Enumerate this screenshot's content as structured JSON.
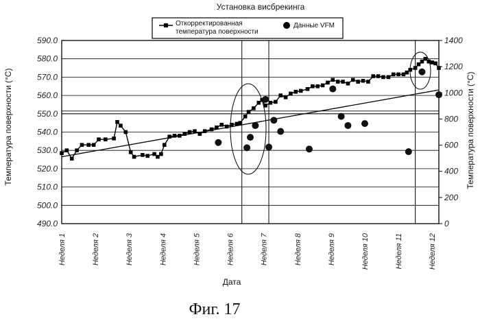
{
  "chart_data": {
    "type": "line",
    "title": "Установка висбрекинга",
    "xlabel": "Дата",
    "ylabel_left": "Температура поверхности (°C)",
    "ylabel_right": "Температура поверхности (°C)",
    "caption": "Фиг. 17",
    "x_categories": [
      "Неделя 1",
      "Неделя 2",
      "Неделя 3",
      "Неделя 4",
      "Неделя 5",
      "Неделя 6",
      "Неделя 7",
      "Неделя 8",
      "Неделя 9",
      "Неделя 10",
      "Неделя 11",
      "Неделя 12"
    ],
    "xlim": [
      1,
      12.2
    ],
    "ylim_left": [
      490,
      590
    ],
    "ylim_right": [
      0,
      1400
    ],
    "y_ticks_left": [
      "490.0",
      "500.0",
      "510.0",
      "520.0",
      "530.0",
      "540.0",
      "550.0",
      "560.0",
      "570.0",
      "580.0",
      "590.0"
    ],
    "y_ticks_right": [
      "0",
      "200",
      "400",
      "600",
      "800",
      "1000",
      "1200",
      "1400"
    ],
    "grid": "horizontal",
    "legend": {
      "placement": "top",
      "entries": [
        "Откорректированная температура поверхности",
        "Данные VFM"
      ]
    },
    "series": [
      {
        "name": "Откорректированная температура поверхности",
        "axis": "left",
        "marker": "square",
        "points": [
          [
            1.0,
            528.5
          ],
          [
            1.15,
            530.0
          ],
          [
            1.3,
            525.5
          ],
          [
            1.45,
            530.0
          ],
          [
            1.6,
            533.0
          ],
          [
            1.8,
            533.0
          ],
          [
            1.95,
            533.0
          ],
          [
            2.1,
            536.0
          ],
          [
            2.3,
            536.0
          ],
          [
            2.55,
            536.5
          ],
          [
            2.65,
            545.5
          ],
          [
            2.75,
            543.5
          ],
          [
            2.9,
            540.0
          ],
          [
            3.05,
            529.0
          ],
          [
            3.15,
            526.5
          ],
          [
            3.4,
            527.5
          ],
          [
            3.55,
            527.0
          ],
          [
            3.75,
            528.0
          ],
          [
            3.85,
            526.5
          ],
          [
            3.95,
            528.0
          ],
          [
            4.05,
            533.0
          ],
          [
            4.2,
            537.5
          ],
          [
            4.35,
            538.0
          ],
          [
            4.5,
            538.0
          ],
          [
            4.65,
            539.0
          ],
          [
            4.8,
            540.0
          ],
          [
            4.95,
            540.5
          ],
          [
            5.1,
            539.0
          ],
          [
            5.25,
            540.5
          ],
          [
            5.45,
            541.5
          ],
          [
            5.6,
            542.5
          ],
          [
            5.75,
            544.0
          ],
          [
            5.9,
            543.0
          ],
          [
            6.05,
            544.0
          ],
          [
            6.2,
            544.5
          ],
          [
            6.3,
            545.0
          ],
          [
            6.45,
            548.5
          ],
          [
            6.55,
            551.0
          ],
          [
            6.7,
            553.0
          ],
          [
            6.85,
            556.0
          ],
          [
            6.95,
            557.5
          ],
          [
            7.05,
            554.5
          ],
          [
            7.2,
            556.0
          ],
          [
            7.35,
            556.5
          ],
          [
            7.5,
            560.0
          ],
          [
            7.65,
            559.0
          ],
          [
            7.8,
            561.0
          ],
          [
            7.95,
            562.0
          ],
          [
            8.1,
            562.5
          ],
          [
            8.3,
            563.5
          ],
          [
            8.45,
            565.0
          ],
          [
            8.6,
            565.0
          ],
          [
            8.75,
            565.5
          ],
          [
            8.9,
            567.0
          ],
          [
            9.05,
            568.5
          ],
          [
            9.2,
            567.5
          ],
          [
            9.35,
            567.5
          ],
          [
            9.5,
            566.5
          ],
          [
            9.65,
            568.5
          ],
          [
            9.8,
            567.5
          ],
          [
            9.95,
            568.0
          ],
          [
            10.1,
            567.5
          ],
          [
            10.25,
            570.5
          ],
          [
            10.4,
            570.5
          ],
          [
            10.55,
            570.0
          ],
          [
            10.7,
            570.0
          ],
          [
            10.85,
            571.5
          ],
          [
            11.0,
            571.5
          ],
          [
            11.15,
            571.5
          ],
          [
            11.25,
            572.5
          ],
          [
            11.35,
            574.0
          ],
          [
            11.5,
            575.0
          ],
          [
            11.6,
            577.0
          ],
          [
            11.7,
            578.5
          ],
          [
            11.8,
            580.0
          ],
          [
            11.9,
            578.5
          ],
          [
            12.0,
            578.0
          ],
          [
            12.1,
            577.5
          ],
          [
            12.2,
            575.0
          ]
        ]
      },
      {
        "name": "Данные VFM",
        "axis": "right",
        "marker": "circle",
        "points": [
          [
            5.65,
            620
          ],
          [
            6.5,
            580
          ],
          [
            6.6,
            660
          ],
          [
            6.75,
            750
          ],
          [
            7.05,
            950
          ],
          [
            7.15,
            585
          ],
          [
            7.3,
            790
          ],
          [
            7.5,
            705
          ],
          [
            8.35,
            570
          ],
          [
            9.05,
            1030
          ],
          [
            9.3,
            820
          ],
          [
            9.5,
            750
          ],
          [
            10.0,
            765
          ],
          [
            11.3,
            550
          ],
          [
            11.7,
            1160
          ],
          [
            12.2,
            985
          ]
        ]
      },
      {
        "name": "",
        "axis": "left",
        "style": "trend-line",
        "points": [
          [
            1.0,
            526.5
          ],
          [
            12.2,
            563.0
          ]
        ]
      }
    ],
    "annotations": {
      "vertical_lines_x": [
        6.35,
        7.15,
        11.5
      ],
      "extra_horizontal_lines_left": [
        550.0,
        551.5
      ],
      "ellipses": [
        "around week 6–7",
        "around week 11.5–12"
      ]
    }
  }
}
